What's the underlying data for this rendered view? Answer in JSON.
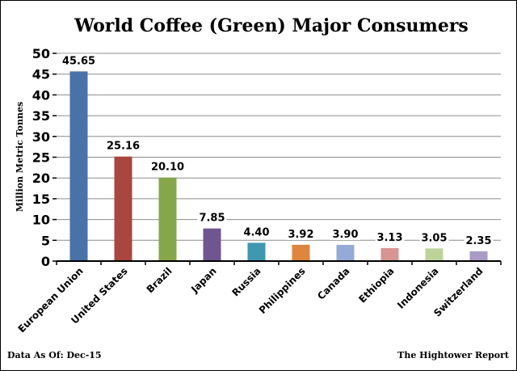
{
  "chart_data": {
    "type": "bar",
    "title": "World Coffee (Green) Major Consumers",
    "xlabel": "",
    "ylabel": "Million Metric Tonnes",
    "ylim": [
      0,
      50
    ],
    "yticks": [
      0,
      5,
      10,
      15,
      20,
      25,
      30,
      35,
      40,
      45,
      50
    ],
    "grid": true,
    "categories": [
      "European Union",
      "United States",
      "Brazil",
      "Japan",
      "Russia",
      "Philippines",
      "Canada",
      "Ethiopia",
      "Indonesia",
      "Switzerland"
    ],
    "values": [
      45.65,
      25.16,
      20.1,
      7.85,
      4.4,
      3.92,
      3.9,
      3.13,
      3.05,
      2.35
    ],
    "data_labels": [
      "45.65",
      "25.16",
      "20.10",
      "7.85",
      "4.40",
      "3.92",
      "3.90",
      "3.13",
      "3.05",
      "2.35"
    ],
    "colors": [
      "#4a72a8",
      "#a9463f",
      "#86a64a",
      "#6f5690",
      "#3f98b0",
      "#de8640",
      "#95abd5",
      "#d69492",
      "#bcd49a",
      "#a99ac6"
    ]
  },
  "footer": {
    "left": "Data As Of: Dec-15",
    "right": "The Hightower Report"
  }
}
